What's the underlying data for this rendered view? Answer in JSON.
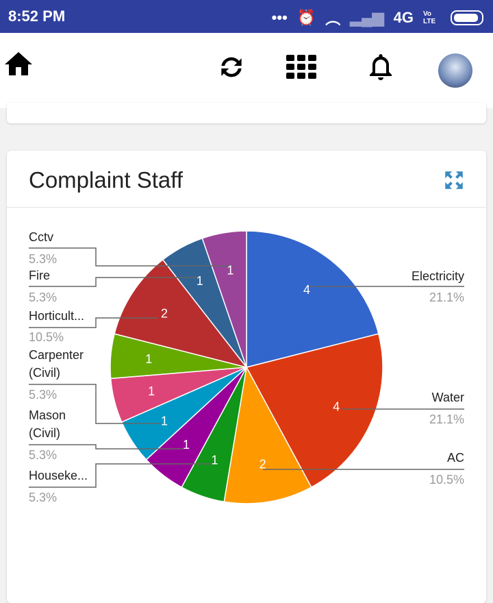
{
  "status": {
    "time": "8:52 PM",
    "network": "4G",
    "volte": "Vo LTE"
  },
  "card": {
    "title": "Complaint Staff"
  },
  "chart_data": {
    "type": "pie",
    "title": "Complaint Staff",
    "slices": [
      {
        "name": "Electricity",
        "value": 4,
        "pct": "21.1%",
        "color": "#3366cc"
      },
      {
        "name": "Water",
        "value": 4,
        "pct": "21.1%",
        "color": "#dc3912"
      },
      {
        "name": "AC",
        "value": 2,
        "pct": "10.5%",
        "color": "#ff9900"
      },
      {
        "name": "Houseke...",
        "value": 1,
        "pct": "5.3%",
        "color": "#109618"
      },
      {
        "name": "Mason (Civil)",
        "value": 1,
        "pct": "5.3%",
        "color": "#990099"
      },
      {
        "name": "Carpenter (Civil)",
        "value": 1,
        "pct": "5.3%",
        "color": "#0099c6"
      },
      {
        "name": "",
        "value": 1,
        "pct": "",
        "color": "#dd4477"
      },
      {
        "name": "",
        "value": 1,
        "pct": "",
        "color": "#66aa00"
      },
      {
        "name": "Horticult...",
        "value": 2,
        "pct": "10.5%",
        "color": "#b82e2e"
      },
      {
        "name": "Fire",
        "value": 1,
        "pct": "5.3%",
        "color": "#316395"
      },
      {
        "name": "Cctv",
        "value": 1,
        "pct": "5.3%",
        "color": "#994499"
      }
    ]
  }
}
